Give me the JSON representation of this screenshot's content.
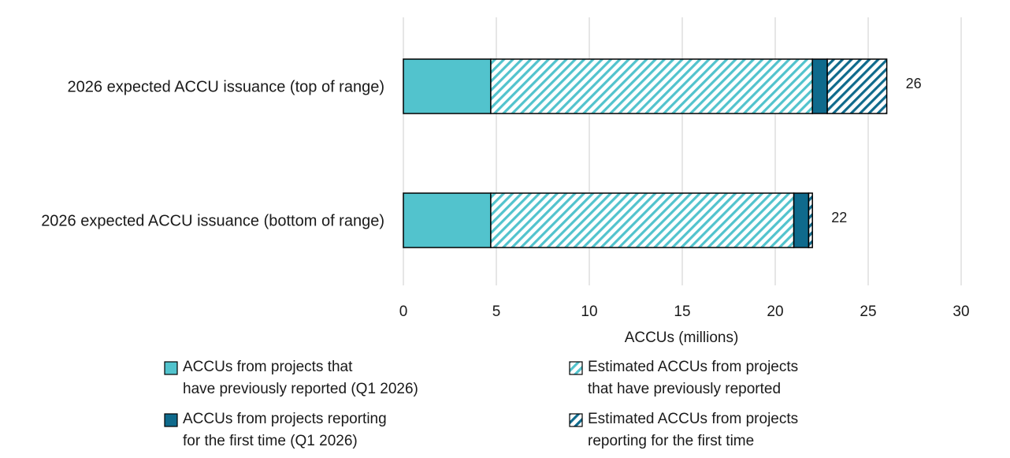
{
  "chart_data": {
    "type": "bar",
    "orientation": "horizontal",
    "stacked": true,
    "categories": [
      "2026 expected ACCU issuance (top of range)",
      "2026 expected ACCU issuance (bottom of range)"
    ],
    "series": [
      {
        "name": "ACCUs from projects that\nhave previously reported (Q1 2026)",
        "values": [
          4.7,
          4.7
        ],
        "color": "#52c3cd",
        "pattern": "solid"
      },
      {
        "name": "Estimated ACCUs from projects\nthat have previously reported",
        "values": [
          17.3,
          16.3
        ],
        "color": "#52c3cd",
        "pattern": "hatch"
      },
      {
        "name": "ACCUs from projects reporting\nfor the first time (Q1 2026)",
        "values": [
          0.8,
          0.8
        ],
        "color": "#0f6a8c",
        "pattern": "solid"
      },
      {
        "name": "Estimated ACCUs from projects\nreporting for the first time",
        "values": [
          3.2,
          0.2
        ],
        "color": "#0f6a8c",
        "pattern": "hatch"
      }
    ],
    "totals": [
      "26",
      "22"
    ],
    "xlabel": "ACCUs (millions)",
    "xlim": [
      0,
      30
    ],
    "xticks": [
      "0",
      "5",
      "10",
      "15",
      "20",
      "25",
      "30"
    ],
    "grid": "vertical",
    "legend_position": "bottom"
  }
}
